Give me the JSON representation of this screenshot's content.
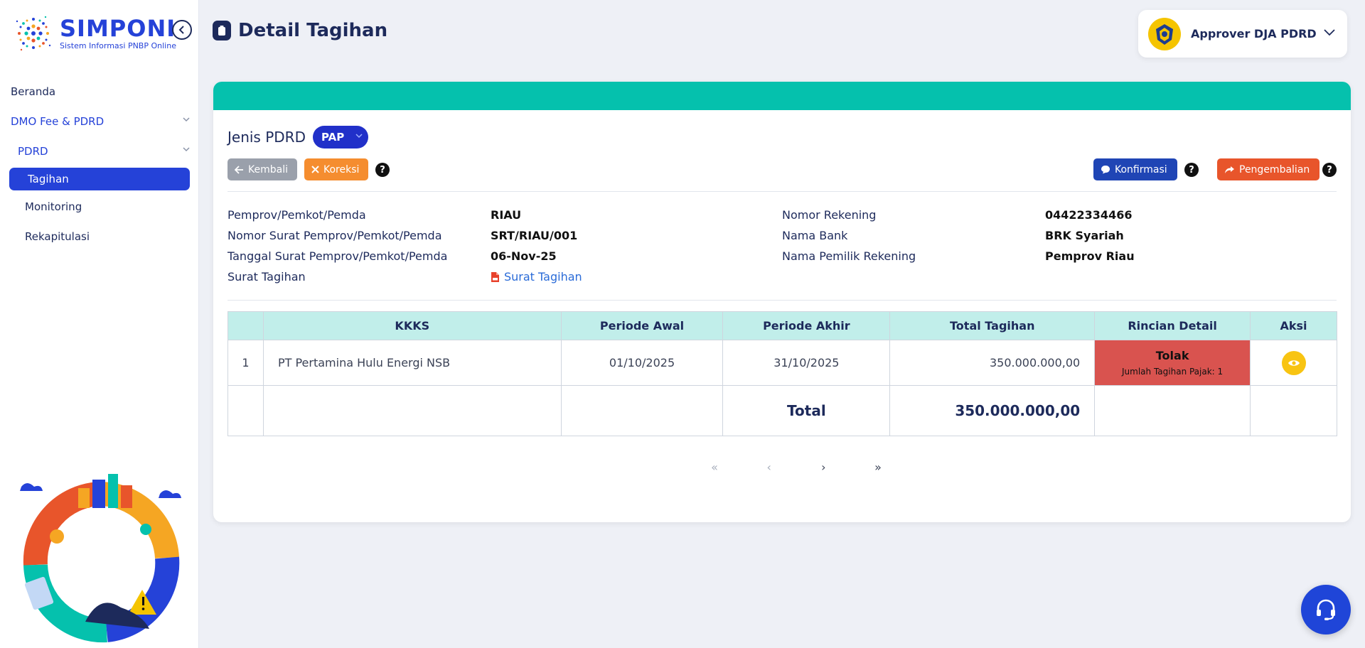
{
  "app": {
    "logo_title": "SIMPONI",
    "logo_subtitle": "Sistem Informasi PNBP Online"
  },
  "sidebar": {
    "items": [
      {
        "label": "Beranda"
      },
      {
        "label": "DMO Fee & PDRD"
      },
      {
        "label": "PDRD"
      },
      {
        "label": "Tagihan"
      },
      {
        "label": "Monitoring"
      },
      {
        "label": "Rekapitulasi"
      }
    ]
  },
  "header": {
    "title": "Detail Tagihan",
    "user_name": "Approver DJA PDRD"
  },
  "colors": {
    "brand": "#2542d8",
    "band": "#05c1ad",
    "status_reject": "#d9534f",
    "table_header": "#c1eeea"
  },
  "jenis": {
    "label": "Jenis PDRD",
    "selected": "PAP"
  },
  "actions": {
    "kembali": "Kembali",
    "koreksi": "Koreksi",
    "konfirmasi": "Konfirmasi",
    "pengembalian": "Pengembalian",
    "help": "?"
  },
  "info_left": [
    {
      "label": "Pemprov/Pemkot/Pemda",
      "value": "RIAU"
    },
    {
      "label": "Nomor Surat Pemprov/Pemkot/Pemda",
      "value": "SRT/RIAU/001"
    },
    {
      "label": "Tanggal Surat Pemprov/Pemkot/Pemda",
      "value": "06-Nov-25"
    },
    {
      "label": "Surat Tagihan",
      "value": "Surat Tagihan"
    }
  ],
  "info_right": [
    {
      "label": "Nomor Rekening",
      "value": "04422334466"
    },
    {
      "label": "Nama Bank",
      "value": "BRK Syariah"
    },
    {
      "label": "Nama Pemilik Rekening",
      "value": "Pemprov Riau"
    }
  ],
  "table": {
    "headers": [
      "",
      "KKKS",
      "Periode Awal",
      "Periode Akhir",
      "Total Tagihan",
      "Rincian Detail",
      "Aksi"
    ],
    "rows": [
      {
        "no": "1",
        "kkks": "PT Pertamina Hulu Energi NSB",
        "periode_awal": "01/10/2025",
        "periode_akhir": "31/10/2025",
        "total_tagihan": "350.000.000,00",
        "rincian_status": "Tolak",
        "rincian_sub": "Jumlah Tagihan Pajak: 1"
      }
    ],
    "total_label": "Total",
    "total_value": "350.000.000,00"
  },
  "pagination": {
    "first": "«",
    "prev": "‹",
    "next": "›",
    "last": "»"
  }
}
